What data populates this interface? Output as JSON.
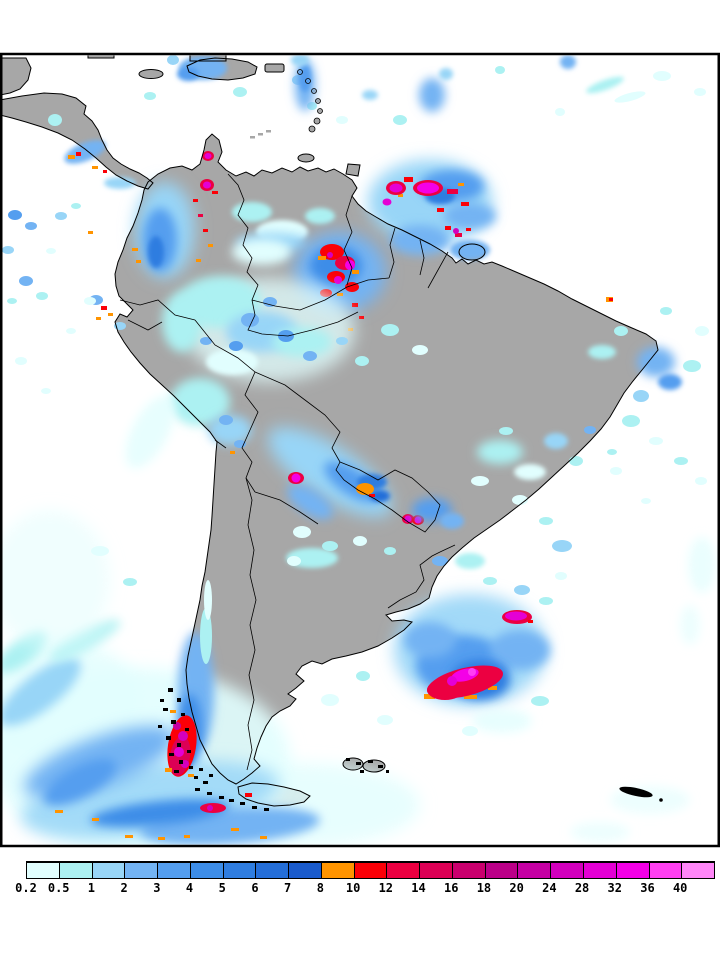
{
  "palette": {
    "land": "#A7A7A7",
    "ocean": "#FFFFFF",
    "frame": "#000000",
    "p02": "#E1FEFE",
    "p05": "#ACF1F2",
    "p1": "#98D5F7",
    "p2": "#73B3F3",
    "p3": "#549EEF",
    "p4": "#3D8DE8",
    "p5": "#2F7DE0",
    "p6": "#246ED9",
    "p7": "#1A5BCD",
    "p8": "#FF9400",
    "p10": "#FB0007",
    "p12": "#EC0041",
    "p14": "#DC0055",
    "p16": "#CA006E",
    "p18": "#BB0088",
    "p20": "#C500A3",
    "p24": "#D300BE",
    "p28": "#E400D5",
    "p32": "#F400E7",
    "p36": "#FF3FF2",
    "p40": "#FF86F8"
  },
  "colorbar": {
    "labels": [
      "0.2",
      "0.5",
      "1",
      "2",
      "3",
      "4",
      "5",
      "6",
      "7",
      "8",
      "10",
      "12",
      "14",
      "16",
      "18",
      "20",
      "24",
      "28",
      "32",
      "36",
      "40"
    ],
    "colors": [
      "#E1FEFE",
      "#ACF1F2",
      "#98D5F7",
      "#73B3F3",
      "#549EEF",
      "#3D8DE8",
      "#2F7DE0",
      "#246ED9",
      "#1A5BCD",
      "#FF9400",
      "#FB0007",
      "#EC0041",
      "#DC0055",
      "#CA006E",
      "#BB0088",
      "#C500A3",
      "#D300BE",
      "#E400D5",
      "#F400E7",
      "#FF3FF2",
      "#FF86F8"
    ]
  },
  "chart_data": {
    "type": "heatmap",
    "title": "",
    "legend_values": [
      0.2,
      0.5,
      1,
      2,
      3,
      4,
      5,
      6,
      7,
      8,
      10,
      12,
      14,
      16,
      18,
      20,
      24,
      28,
      32,
      36,
      40
    ],
    "legend_colors": [
      "#E1FEFE",
      "#ACF1F2",
      "#98D5F7",
      "#73B3F3",
      "#549EEF",
      "#3D8DE8",
      "#2F7DE0",
      "#246ED9",
      "#1A5BCD",
      "#FF9400",
      "#FB0007",
      "#EC0041",
      "#DC0055",
      "#CA006E",
      "#BB0088",
      "#C500A3",
      "#D300BE",
      "#E400D5",
      "#F400E7",
      "#FF3FF2",
      "#FF86F8"
    ],
    "legend_position": "bottom"
  }
}
